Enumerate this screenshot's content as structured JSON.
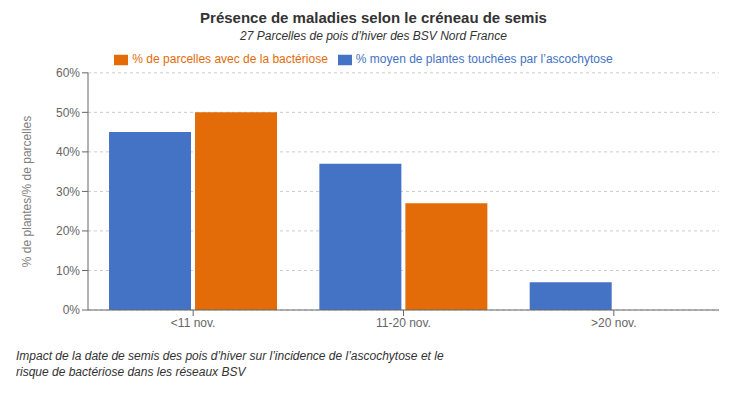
{
  "chart_data": {
    "type": "bar",
    "title": "Présence de maladies selon le créneau de semis",
    "subtitle": "27 Parcelles de pois d’hiver des BSV Nord France",
    "categories": [
      "<11 nov.",
      "11-20 nov.",
      ">20 nov."
    ],
    "series": [
      {
        "name": "% moyen de plantes touchées par l’ascochytose",
        "color": "#4472C4",
        "values": [
          45,
          37,
          7
        ]
      },
      {
        "name": "% de parcelles avec de la bactériose",
        "color": "#E36C09",
        "values": [
          50,
          27,
          0
        ]
      }
    ],
    "ylabel": "% de plantes/% de parcelles",
    "ylim": [
      0,
      60
    ],
    "yticks": [
      {
        "value": 0,
        "label": "0%"
      },
      {
        "value": 10,
        "label": "10%"
      },
      {
        "value": 20,
        "label": "20%"
      },
      {
        "value": 30,
        "label": "30%"
      },
      {
        "value": 40,
        "label": "40%"
      },
      {
        "value": 50,
        "label": "50%"
      },
      {
        "value": 60,
        "label": "60%"
      }
    ],
    "grid": true,
    "legend": "top",
    "caption": "Impact de la date de semis des pois d’hiver sur l’incidence de l’ascochytose et le\nrisque de bactériose dans les réseaux BSV"
  }
}
